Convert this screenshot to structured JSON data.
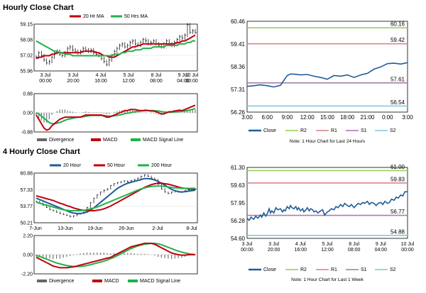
{
  "sections": [
    {
      "title": "Hourly Close Chart"
    },
    {
      "title": "4 Hourly Close Chart"
    }
  ],
  "colors": {
    "red": "#c0000e",
    "green": "#22b04b",
    "blue": "#1f5c99",
    "r2": "#9ccf5a",
    "r1": "#d9878d",
    "s1": "#a77fa9",
    "s2": "#88c9db"
  },
  "chart_data": [
    {
      "id": "hourly-price",
      "type": "candlestick-with-ma",
      "ylim": [
        55.96,
        59.15
      ],
      "yticks": [
        "59.15",
        "58.08",
        "57.02",
        "55.96"
      ],
      "xticks": [
        [
          "3 Jul",
          "00:00"
        ],
        [
          "3 Jul",
          "20:00"
        ],
        [
          "4 Jul",
          "16:00"
        ],
        [
          "5 Jul",
          "12:00"
        ],
        [
          "8 Jul",
          "08:00"
        ],
        [
          "9 Jul",
          "04:00"
        ],
        [
          "10 Jul",
          "00:00"
        ]
      ],
      "legend": [
        "20 Hr MA",
        "50 Hrs MA"
      ],
      "close": [
        56.9,
        57.2,
        57.0,
        56.7,
        56.5,
        56.6,
        56.9,
        57.2,
        57.3,
        57.1,
        57.0,
        57.2,
        57.5,
        57.6,
        57.4,
        57.3,
        57.2,
        57.3,
        57.5,
        57.4,
        57.3,
        57.4,
        57.2,
        57.1,
        57.0,
        56.8,
        56.6,
        56.4,
        56.7,
        57.0,
        57.3,
        57.5,
        57.7,
        57.8,
        57.6,
        57.7,
        57.9,
        58.0,
        57.8,
        57.7,
        57.9,
        58.1,
        58.0,
        57.8,
        57.9,
        58.0,
        57.8,
        57.7,
        57.6,
        57.8,
        58.0,
        57.8,
        57.7,
        57.9,
        58.1,
        58.3,
        58.2,
        58.4,
        59.1,
        58.6,
        58.7,
        58.6
      ],
      "ma20": [
        56.8,
        56.9,
        56.9,
        57.0,
        57.0,
        57.0,
        57.1,
        57.1,
        57.2,
        57.2,
        57.2,
        57.2,
        57.2,
        57.2,
        57.2,
        57.2,
        57.2,
        57.2,
        57.3,
        57.3,
        57.3,
        57.3,
        57.3,
        57.2,
        57.2,
        57.1,
        57.0,
        57.0,
        56.9,
        56.9,
        56.9,
        57.0,
        57.1,
        57.2,
        57.3,
        57.4,
        57.5,
        57.6,
        57.6,
        57.7,
        57.7,
        57.8,
        57.8,
        57.8,
        57.8,
        57.8,
        57.8,
        57.8,
        57.8,
        57.8,
        57.8,
        57.8,
        57.8,
        57.8,
        57.9,
        57.9,
        58.0,
        58.0,
        58.1,
        58.2,
        58.3,
        58.4
      ],
      "ma50": [
        58.0,
        57.9,
        57.8,
        57.7,
        57.6,
        57.5,
        57.4,
        57.3,
        57.3,
        57.2,
        57.2,
        57.1,
        57.1,
        57.1,
        57.0,
        57.0,
        57.0,
        57.0,
        57.0,
        57.0,
        57.0,
        57.0,
        57.0,
        57.0,
        57.0,
        57.0,
        57.0,
        57.0,
        57.0,
        57.0,
        57.1,
        57.1,
        57.1,
        57.2,
        57.2,
        57.3,
        57.3,
        57.3,
        57.4,
        57.4,
        57.4,
        57.5,
        57.5,
        57.5,
        57.5,
        57.6,
        57.6,
        57.6,
        57.6,
        57.6,
        57.7,
        57.7,
        57.7,
        57.7,
        57.7,
        57.8,
        57.8,
        57.8,
        57.9,
        57.9,
        58.0,
        58.0
      ]
    },
    {
      "id": "hourly-macd",
      "type": "macd",
      "ylim": [
        -0.88,
        0.88
      ],
      "yticks": [
        "0.88",
        "0.00",
        "-0.88"
      ],
      "legend": [
        "Divergence",
        "MACD",
        "MACD Signal Line"
      ],
      "macd": [
        -0.1,
        -0.3,
        -0.5,
        -0.7,
        -0.8,
        -0.75,
        -0.6,
        -0.5,
        -0.4,
        -0.3,
        -0.25,
        -0.2,
        -0.2,
        -0.2,
        -0.2,
        -0.2,
        -0.2,
        -0.2,
        -0.15,
        -0.1,
        -0.1,
        -0.1,
        -0.1,
        -0.1,
        -0.1,
        -0.1,
        -0.15,
        -0.2,
        -0.2,
        -0.15,
        -0.1,
        -0.05,
        0.0,
        0.05,
        0.1,
        0.1,
        0.15,
        0.15,
        0.15,
        0.12,
        0.1,
        0.1,
        0.12,
        0.1,
        0.08,
        0.08,
        0.05,
        0.0,
        -0.05,
        -0.05,
        0.0,
        0.05,
        0.05,
        0.08,
        0.1,
        0.12,
        0.1,
        0.15,
        0.2,
        0.25,
        0.3,
        0.35
      ],
      "signal": [
        0.0,
        -0.05,
        -0.15,
        -0.25,
        -0.35,
        -0.45,
        -0.5,
        -0.5,
        -0.48,
        -0.45,
        -0.4,
        -0.35,
        -0.3,
        -0.28,
        -0.25,
        -0.22,
        -0.2,
        -0.2,
        -0.18,
        -0.16,
        -0.14,
        -0.12,
        -0.12,
        -0.12,
        -0.12,
        -0.12,
        -0.12,
        -0.14,
        -0.15,
        -0.15,
        -0.14,
        -0.12,
        -0.1,
        -0.07,
        -0.04,
        -0.02,
        0.0,
        0.03,
        0.05,
        0.07,
        0.08,
        0.09,
        0.1,
        0.1,
        0.1,
        0.1,
        0.09,
        0.08,
        0.06,
        0.04,
        0.03,
        0.03,
        0.03,
        0.04,
        0.05,
        0.06,
        0.07,
        0.08,
        0.1,
        0.13,
        0.16,
        0.2
      ]
    },
    {
      "id": "hourly-levels",
      "type": "line-with-levels",
      "ylim": [
        56.26,
        60.46
      ],
      "yticks": [
        "60.46",
        "59.41",
        "58.36",
        "57.31",
        "56.26"
      ],
      "xticks": [
        "3:00",
        "6:00",
        "9:00",
        "12:00",
        "15:00",
        "18:00",
        "21:00",
        "0:00",
        "3:00"
      ],
      "series_x": [
        0,
        1,
        2,
        3,
        4,
        5,
        6,
        6.5,
        7,
        8,
        9,
        10,
        11,
        12,
        13,
        14,
        15,
        16,
        17,
        18,
        19,
        20,
        21,
        22,
        23,
        24
      ],
      "series_y": [
        57.45,
        57.48,
        57.52,
        57.48,
        57.42,
        57.5,
        57.95,
        58.02,
        58.02,
        57.98,
        58.0,
        57.92,
        57.86,
        57.78,
        57.95,
        57.92,
        57.98,
        57.86,
        57.98,
        58.05,
        58.25,
        58.35,
        58.5,
        58.52,
        58.48,
        58.55
      ],
      "levels": [
        {
          "name": "R2",
          "value": "60.16",
          "y": 60.16
        },
        {
          "name": "R1",
          "value": "59.42",
          "y": 59.42
        },
        {
          "name": "S1",
          "value": "57.61",
          "y": 57.61
        },
        {
          "name": "S2",
          "value": "56.54",
          "y": 56.54
        }
      ],
      "legend": [
        "Close",
        "R2",
        "R1",
        "S1",
        "S2"
      ],
      "note": "Note: 1 Hour Chart for Last 24 Hours"
    },
    {
      "id": "4hourly-price",
      "type": "candlestick-with-ma",
      "ylim": [
        50.21,
        60.88
      ],
      "yticks": [
        "60.88",
        "57.33",
        "53.77",
        "50.21"
      ],
      "xticks": [
        "7-Jun",
        "13-Jun",
        "19-Jun",
        "26-Jun",
        "2-Jul",
        "8-Jul"
      ],
      "legend": [
        "20 Hour",
        "50 Hour",
        "200 Hour"
      ],
      "close": [
        54.8,
        54.5,
        54.0,
        53.5,
        53.0,
        52.8,
        52.5,
        52.2,
        52.0,
        51.8,
        51.5,
        51.7,
        52.0,
        52.2,
        52.5,
        53.5,
        54.5,
        55.5,
        56.2,
        56.8,
        57.2,
        57.5,
        58.2,
        58.6,
        58.8,
        59.0,
        59.2,
        59.0,
        59.3,
        59.5,
        59.8,
        60.2,
        60.5,
        60.2,
        59.8,
        59.5,
        58.5,
        57.5,
        56.8,
        56.5,
        56.8,
        57.0,
        56.8,
        56.9,
        57.1,
        57.3,
        57.6,
        57.4
      ],
      "ma20": [
        55.5,
        55.2,
        54.9,
        54.6,
        54.3,
        54.0,
        53.7,
        53.4,
        53.1,
        52.8,
        52.5,
        52.3,
        52.2,
        52.2,
        52.3,
        52.5,
        52.9,
        53.4,
        54.0,
        54.6,
        55.2,
        55.8,
        56.4,
        57.0,
        57.6,
        58.0,
        58.4,
        58.7,
        58.9,
        59.1,
        59.3,
        59.5,
        59.7,
        59.7,
        59.6,
        59.4,
        59.1,
        58.7,
        58.3,
        57.8,
        57.4,
        57.1,
        56.9,
        56.8,
        56.9,
        57.0,
        57.1,
        57.2
      ],
      "ma50": [
        56.0,
        55.8,
        55.6,
        55.4,
        55.2,
        55.0,
        54.7,
        54.4,
        54.2,
        53.9,
        53.7,
        53.4,
        53.2,
        53.0,
        52.9,
        52.8,
        52.8,
        52.8,
        52.9,
        53.0,
        53.2,
        53.5,
        53.8,
        54.2,
        54.6,
        55.0,
        55.4,
        55.8,
        56.2,
        56.6,
        57.0,
        57.4,
        57.8,
        58.1,
        58.4,
        58.6,
        58.7,
        58.7,
        58.6,
        58.5,
        58.3,
        58.1,
        57.9,
        57.7,
        57.6,
        57.5,
        57.4,
        57.4
      ],
      "ma200": [
        54.6,
        54.4,
        54.2,
        54.0,
        53.8,
        53.6,
        53.4,
        53.2,
        53.0,
        52.9,
        52.8,
        52.8,
        52.8,
        52.8,
        52.9,
        53.0,
        53.2,
        53.4,
        53.6,
        53.9,
        54.2,
        54.5,
        54.8,
        55.1,
        55.4,
        55.7,
        56.0,
        56.3,
        56.6,
        56.9,
        57.2,
        57.5,
        57.7,
        57.9,
        58.0,
        58.1,
        58.1,
        58.1,
        58.0,
        57.9,
        57.8,
        57.7,
        57.7,
        57.6,
        57.6,
        57.6,
        57.6,
        57.6
      ]
    },
    {
      "id": "4hourly-macd",
      "type": "macd",
      "ylim": [
        -2.2,
        2.2
      ],
      "yticks": [
        "2.20",
        "0.00",
        "-2.20"
      ],
      "legend": [
        "Divergence",
        "MACD",
        "MACD Signal Line"
      ],
      "macd": [
        -0.3,
        -0.5,
        -0.7,
        -0.9,
        -1.1,
        -1.3,
        -1.4,
        -1.5,
        -1.5,
        -1.5,
        -1.45,
        -1.4,
        -1.3,
        -1.2,
        -1.1,
        -1.0,
        -0.9,
        -0.8,
        -0.7,
        -0.6,
        -0.5,
        -0.4,
        -0.3,
        -0.1,
        0.1,
        0.3,
        0.5,
        0.7,
        0.9,
        1.0,
        1.1,
        1.2,
        1.3,
        1.3,
        1.3,
        1.2,
        1.0,
        0.8,
        0.6,
        0.4,
        0.2,
        0.1,
        0.0,
        -0.05,
        -0.05,
        0.0,
        0.0,
        0.0
      ],
      "signal": [
        -0.1,
        -0.2,
        -0.35,
        -0.5,
        -0.65,
        -0.8,
        -0.95,
        -1.05,
        -1.15,
        -1.25,
        -1.3,
        -1.35,
        -1.35,
        -1.35,
        -1.3,
        -1.25,
        -1.15,
        -1.05,
        -0.95,
        -0.85,
        -0.75,
        -0.6,
        -0.45,
        -0.3,
        -0.1,
        0.1,
        0.3,
        0.5,
        0.7,
        0.85,
        1.0,
        1.1,
        1.2,
        1.25,
        1.3,
        1.3,
        1.25,
        1.15,
        1.0,
        0.85,
        0.7,
        0.55,
        0.4,
        0.3,
        0.2,
        0.12,
        0.06,
        0.02
      ]
    },
    {
      "id": "4hourly-levels",
      "type": "line-with-levels",
      "ylim": [
        54.6,
        61.3
      ],
      "yticks": [
        "61.30",
        "59.63",
        "57.95",
        "56.28",
        "54.60"
      ],
      "xticks": [
        [
          "3 Jul",
          "00:00"
        ],
        [
          "3 Jul",
          "20:00"
        ],
        [
          "4 Jul",
          "16:00"
        ],
        [
          "5 Jul",
          "12:00"
        ],
        [
          "8 Jul",
          "08:00"
        ],
        [
          "9 Jul",
          "04:00"
        ],
        [
          "10 Jul",
          "00:00"
        ]
      ],
      "series_x": [
        0,
        0.3,
        0.6,
        1.0,
        1.3,
        1.6,
        2.0,
        2.2,
        2.5,
        2.8,
        3.0,
        3.3,
        3.5,
        3.7,
        4.0,
        4.3,
        4.6,
        5.0,
        5.3,
        5.5,
        5.7,
        6.0,
        6.3,
        6.5,
        6.7,
        7.0,
        7.3,
        7.5,
        7.7,
        8.0,
        8.3,
        8.5,
        8.8,
        9.0,
        9.3,
        9.5,
        9.8,
        10.0,
        10.3,
        10.6,
        11.0,
        11.3,
        11.6,
        12.0,
        12.3,
        12.6,
        13.0,
        13.3,
        13.6,
        14.0,
        14.3,
        14.6,
        15.0,
        15.3,
        15.6,
        16.0,
        16.3,
        16.6,
        17.0,
        17.3,
        17.6,
        18.0,
        18.3,
        18.6,
        19.0,
        19.3,
        19.6,
        20.0,
        20.3,
        20.6,
        21.0,
        21.3,
        21.6,
        22.0,
        22.3,
        22.6,
        23.0,
        23.3,
        23.6,
        24.0
      ],
      "series_y": [
        56.5,
        56.3,
        56.6,
        56.4,
        56.7,
        56.5,
        56.8,
        56.6,
        57.0,
        56.7,
        56.9,
        57.4,
        57.0,
        57.2,
        57.0,
        57.5,
        57.3,
        57.4,
        57.1,
        57.3,
        57.2,
        57.6,
        57.4,
        57.7,
        57.5,
        57.4,
        57.6,
        57.3,
        57.5,
        57.2,
        57.4,
        57.1,
        57.3,
        57.5,
        57.2,
        57.4,
        57.3,
        57.1,
        57.2,
        57.0,
        57.2,
        57.3,
        56.8,
        57.1,
        57.2,
        57.4,
        57.3,
        57.6,
        57.5,
        57.8,
        57.6,
        57.9,
        57.7,
        57.6,
        57.8,
        57.5,
        57.7,
        57.9,
        57.8,
        58.0,
        57.9,
        58.1,
        57.8,
        58.0,
        57.9,
        57.7,
        57.9,
        58.0,
        57.8,
        58.1,
        57.9,
        58.0,
        58.3,
        58.2,
        58.5,
        58.4,
        58.7,
        58.6,
        59.0,
        59.0
      ],
      "levels": [
        {
          "name": "R2",
          "value": "61.00",
          "y": 61.0
        },
        {
          "name": "R1",
          "value": "59.83",
          "y": 59.83
        },
        {
          "name": "S1",
          "value": "56.77",
          "y": 56.77
        },
        {
          "name": "S2",
          "value": "54.88",
          "y": 54.88
        }
      ],
      "legend": [
        "Close",
        "R2",
        "R1",
        "S1",
        "S2"
      ],
      "note": "Note: 1 Hour Chart for Last 1 Week"
    }
  ]
}
